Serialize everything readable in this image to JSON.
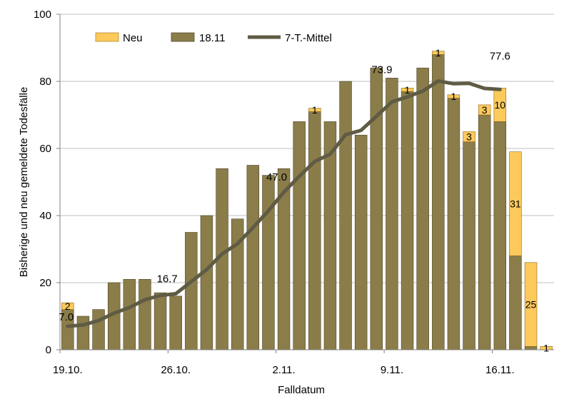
{
  "chart_data": {
    "type": "bar",
    "stacked": true,
    "ylabel": "Bisherige und neu gemeldete Todesfälle",
    "xlabel": "Falldatum",
    "ylim": [
      0,
      100
    ],
    "yticks": [
      0,
      20,
      40,
      60,
      80,
      100
    ],
    "x_tick_labels": [
      {
        "index": 0,
        "label": "19.10."
      },
      {
        "index": 7,
        "label": "26.10."
      },
      {
        "index": 14,
        "label": "2.11."
      },
      {
        "index": 21,
        "label": "9.11."
      },
      {
        "index": 28,
        "label": "16.11."
      }
    ],
    "grid": true,
    "colors": {
      "old": "#8b7d4a",
      "new": "#fdc95b",
      "line": "#5f5b44",
      "grid": "#bfbfbf"
    },
    "legend": [
      {
        "key": "new",
        "label": "Neu"
      },
      {
        "key": "old",
        "label": "18.11"
      },
      {
        "key": "line",
        "label": "7-T.-Mittel"
      }
    ],
    "series": [
      {
        "name": "18.11",
        "key": "old",
        "values": [
          12,
          10,
          12,
          20,
          21,
          21,
          17,
          16,
          35,
          40,
          54,
          39,
          55,
          52,
          54,
          68,
          71,
          68,
          80,
          64,
          84,
          81,
          77,
          84,
          88,
          75,
          62,
          70,
          68,
          28,
          1,
          0
        ]
      },
      {
        "name": "Neu",
        "key": "new",
        "values": [
          2,
          0,
          0,
          0,
          0,
          0,
          0,
          0,
          0,
          0,
          0,
          0,
          0,
          0,
          0,
          0,
          1,
          0,
          0,
          0,
          0,
          0,
          1,
          0,
          1,
          1,
          3,
          3,
          10,
          31,
          25,
          1
        ]
      },
      {
        "name": "7-T.-Mittel",
        "key": "line",
        "type": "line",
        "values": [
          7.0,
          7.4,
          8.7,
          10.9,
          12.6,
          14.9,
          16.2,
          16.7,
          20.3,
          23.9,
          28.6,
          31.6,
          36.4,
          41.4,
          47.0,
          51.7,
          56.1,
          58.3,
          64.1,
          65.4,
          69.6,
          73.9,
          75.4,
          77.1,
          80.1,
          79.3,
          79.4,
          77.9,
          77.6
        ]
      }
    ],
    "annotations": [
      {
        "index": 0,
        "text": "7.0"
      },
      {
        "index": 7,
        "text": "16.7"
      },
      {
        "index": 14,
        "text": "47.0"
      },
      {
        "index": 21,
        "text": "73.9"
      },
      {
        "index": 28,
        "text": "77.6"
      }
    ]
  }
}
